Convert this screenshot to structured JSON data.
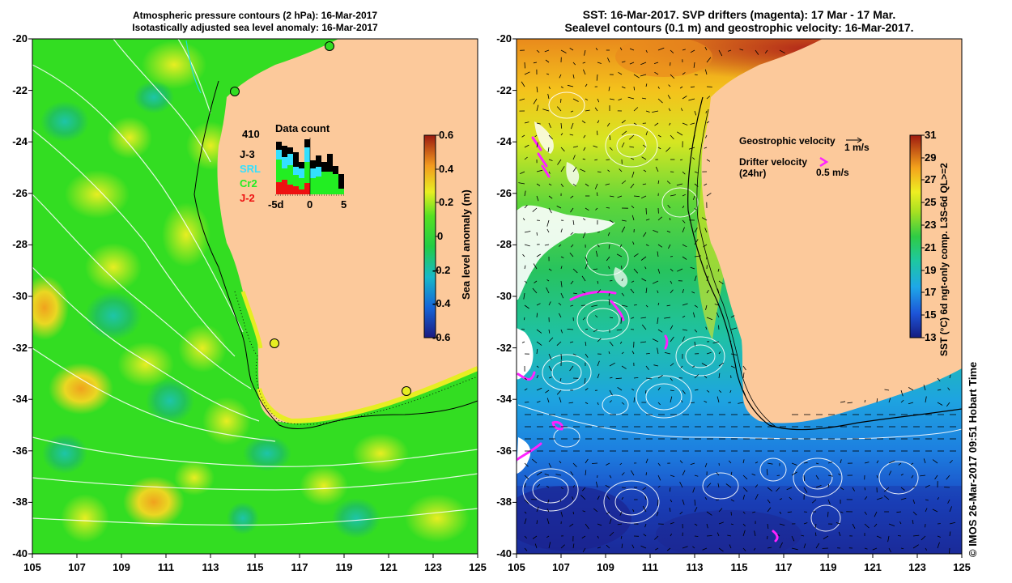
{
  "left_panel": {
    "title_line1": "Atmospheric pressure contours (2 hPa): 16-Mar-2017",
    "title_line2": "Isotastically adjusted sea level anomaly: 16-Mar-2017",
    "lat_ticks": [
      "-20",
      "-22",
      "-24",
      "-26",
      "-28",
      "-30",
      "-32",
      "-34",
      "-36",
      "-38",
      "-40"
    ],
    "lon_ticks": [
      "105",
      "107",
      "109",
      "111",
      "113",
      "115",
      "117",
      "119",
      "121",
      "123",
      "125"
    ],
    "data_count": {
      "total": "410",
      "title": "Data count",
      "satellites": [
        {
          "name": "J-3",
          "color": "#000000"
        },
        {
          "name": "SRL",
          "color": "#33e0ff"
        },
        {
          "name": "Cr2",
          "color": "#22ee22"
        },
        {
          "name": "J-2",
          "color": "#ee1111"
        }
      ],
      "axis_labels": [
        "-5d",
        "0",
        "5"
      ]
    },
    "colorbar": {
      "label": "Sea level anomaly (m)",
      "ticks": [
        "0.6",
        "0.4",
        "0.2",
        "0",
        "-0.2",
        "-0.4",
        "-0.6"
      ]
    }
  },
  "right_panel": {
    "title_line1": "SST: 16-Mar-2017. SVP drifters (magenta): 17 Mar - 17 Mar.",
    "title_line2": "Sealevel contours (0.1 m) and geostrophic velocity: 16-Mar-2017.",
    "lat_ticks": [
      "-20",
      "-22",
      "-24",
      "-26",
      "-28",
      "-30",
      "-32",
      "-34",
      "-36",
      "-38",
      "-40"
    ],
    "lon_ticks": [
      "105",
      "107",
      "109",
      "111",
      "113",
      "115",
      "117",
      "119",
      "121",
      "123",
      "125"
    ],
    "legend": {
      "geo_label": "Geostrophic velocity",
      "geo_scale": "1 m/s",
      "drifter_label": "Drifter velocity",
      "drifter_sub": "(24hr)",
      "drifter_scale": "0.5 m/s"
    },
    "colorbar": {
      "label": "SST (°C) 6d ngt-only comp. L3S-6d QL>=2",
      "ticks": [
        "31",
        "29",
        "27",
        "25",
        "23",
        "21",
        "19",
        "17",
        "15",
        "13"
      ]
    },
    "credit": "© IMOS 26-Mar-2017 09:51 Hobart Time"
  },
  "colors": {
    "land": "#fcc99b",
    "sla_green": "#33dd22",
    "sla_yellow": "#e6ee22",
    "drifter": "#ff22ff"
  }
}
